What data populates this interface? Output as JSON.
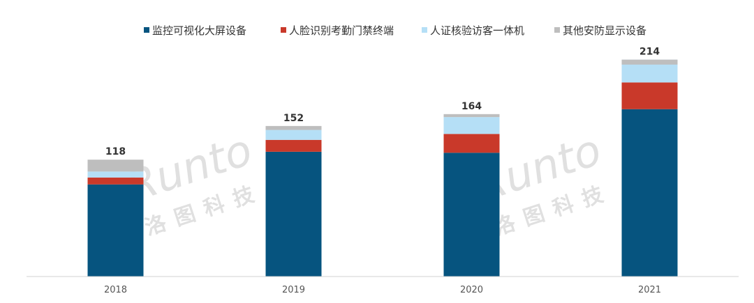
{
  "chart_data": {
    "type": "bar",
    "stacked": true,
    "categories": [
      "2018",
      "2019",
      "2020",
      "2021"
    ],
    "series": [
      {
        "name": "监控可视化大屏设备",
        "color": "#06547F",
        "values": [
          93,
          126,
          125,
          169
        ]
      },
      {
        "name": "人脸识别考勤门禁终端",
        "color": "#C9392A",
        "values": [
          7,
          12,
          19,
          27
        ]
      },
      {
        "name": "人证核验访客一体机",
        "color": "#B5DFF6",
        "values": [
          6,
          10,
          17,
          23
        ]
      },
      {
        "name": "其他安防显示设备",
        "color": "#BEBEBE",
        "values": [
          12,
          4,
          3,
          -5
        ]
      }
    ],
    "totals": [
      "118",
      "152",
      "164",
      "214"
    ],
    "ylim": [
      0,
      230
    ],
    "grid": false,
    "legend_position": "top"
  },
  "watermark": {
    "brand": "Runto",
    "cn": "洛图科技"
  }
}
